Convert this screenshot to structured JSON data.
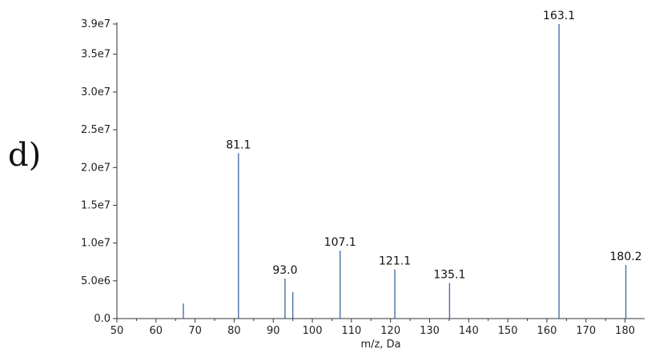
{
  "chart_data": {
    "type": "bar",
    "panel_label": "d)",
    "title": "",
    "xlabel": "m/z, Da",
    "ylabel": "",
    "xlim": [
      50,
      185
    ],
    "ylim": [
      0,
      39000000
    ],
    "x_ticks": [
      50,
      60,
      70,
      80,
      90,
      100,
      110,
      120,
      130,
      140,
      150,
      160,
      170,
      180
    ],
    "y_ticks": [
      {
        "value": 0,
        "label": "0.0"
      },
      {
        "value": 5000000,
        "label": "5.0e6"
      },
      {
        "value": 10000000,
        "label": "1.0e7"
      },
      {
        "value": 15000000,
        "label": "1.5e7"
      },
      {
        "value": 20000000,
        "label": "2.0e7"
      },
      {
        "value": 25000000,
        "label": "2.5e7"
      },
      {
        "value": 30000000,
        "label": "3.0e7"
      },
      {
        "value": 35000000,
        "label": "3.5e7"
      },
      {
        "value": 39000000,
        "label": "3.9e7"
      }
    ],
    "peaks": [
      {
        "x": 67.0,
        "y": 2000000,
        "label": ""
      },
      {
        "x": 81.1,
        "y": 21900000,
        "label": "81.1"
      },
      {
        "x": 93.0,
        "y": 5300000,
        "label": "93.0"
      },
      {
        "x": 95.0,
        "y": 3500000,
        "label": ""
      },
      {
        "x": 107.1,
        "y": 9000000,
        "label": "107.1"
      },
      {
        "x": 121.1,
        "y": 6500000,
        "label": "121.1"
      },
      {
        "x": 135.1,
        "y": 4700000,
        "label": "135.1"
      },
      {
        "x": 163.1,
        "y": 39000000,
        "label": "163.1"
      },
      {
        "x": 180.2,
        "y": 7100000,
        "label": "180.2"
      }
    ],
    "bar_color": "#4a6fa5",
    "grid": false
  }
}
